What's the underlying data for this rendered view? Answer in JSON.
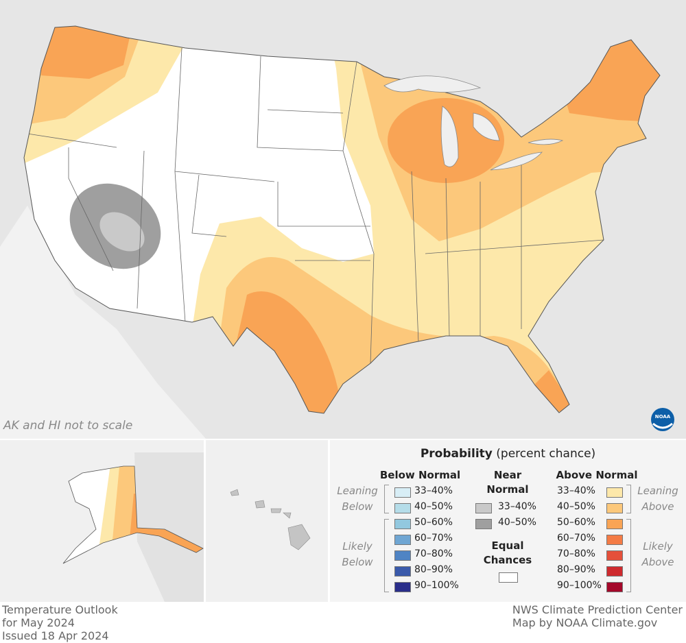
{
  "map": {
    "note": "AK and HI not to scale",
    "logo": "NOAA"
  },
  "legend": {
    "title": "Probability",
    "subtitle": "(percent chance)",
    "below": {
      "heading": "Below Normal",
      "leaning": "Leaning Below",
      "likely": "Likely Below",
      "ranges": [
        "33–40%",
        "40–50%",
        "50–60%",
        "60–70%",
        "70–80%",
        "80–90%",
        "90–100%"
      ],
      "colors": [
        "#d8eef6",
        "#b5dde9",
        "#92c8df",
        "#6fa6d3",
        "#4f84c4",
        "#3a5aab",
        "#2a2e8a"
      ]
    },
    "near": {
      "heading": "Near Normal",
      "ranges": [
        "33–40%",
        "40–50%"
      ],
      "colors": [
        "#c9c9c9",
        "#9f9f9f"
      ]
    },
    "equal": {
      "heading": "Equal Chances",
      "color": "#ffffff"
    },
    "above": {
      "heading": "Above Normal",
      "leaning": "Leaning Above",
      "likely": "Likely Above",
      "ranges": [
        "33–40%",
        "40–50%",
        "50–60%",
        "60–70%",
        "70–80%",
        "80–90%",
        "90–100%"
      ],
      "colors": [
        "#fde8aa",
        "#fcc87b",
        "#f9a455",
        "#f47b45",
        "#e5503a",
        "#ce2a2e",
        "#a4082a"
      ]
    }
  },
  "footer": {
    "left": [
      "Temperature Outlook",
      "for May 2024",
      "Issued 18 Apr 2024"
    ],
    "right": [
      "NWS Climate Prediction Center",
      "Map by NOAA Climate.gov"
    ]
  }
}
